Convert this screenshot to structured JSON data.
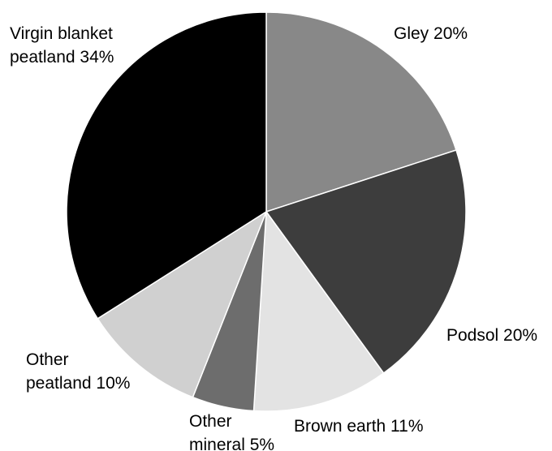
{
  "chart_data": {
    "type": "pie",
    "title": "",
    "start_angle_deg": 0,
    "direction": "clockwise",
    "slices": [
      {
        "label_lines": [
          "Gley 20%"
        ],
        "value": 20,
        "color": "#888888"
      },
      {
        "label_lines": [
          "Podsol 20%"
        ],
        "value": 20,
        "color": "#3d3d3d"
      },
      {
        "label_lines": [
          "Brown earth 11%"
        ],
        "value": 11,
        "color": "#e3e3e3"
      },
      {
        "label_lines": [
          "Other",
          "mineral 5%"
        ],
        "value": 5,
        "color": "#6d6d6d"
      },
      {
        "label_lines": [
          "Other",
          "peatland 10%"
        ],
        "value": 10,
        "color": "#d0d0d0"
      },
      {
        "label_lines": [
          "Virgin blanket",
          "peatland 34%"
        ],
        "value": 34,
        "color": "#000000"
      }
    ]
  }
}
